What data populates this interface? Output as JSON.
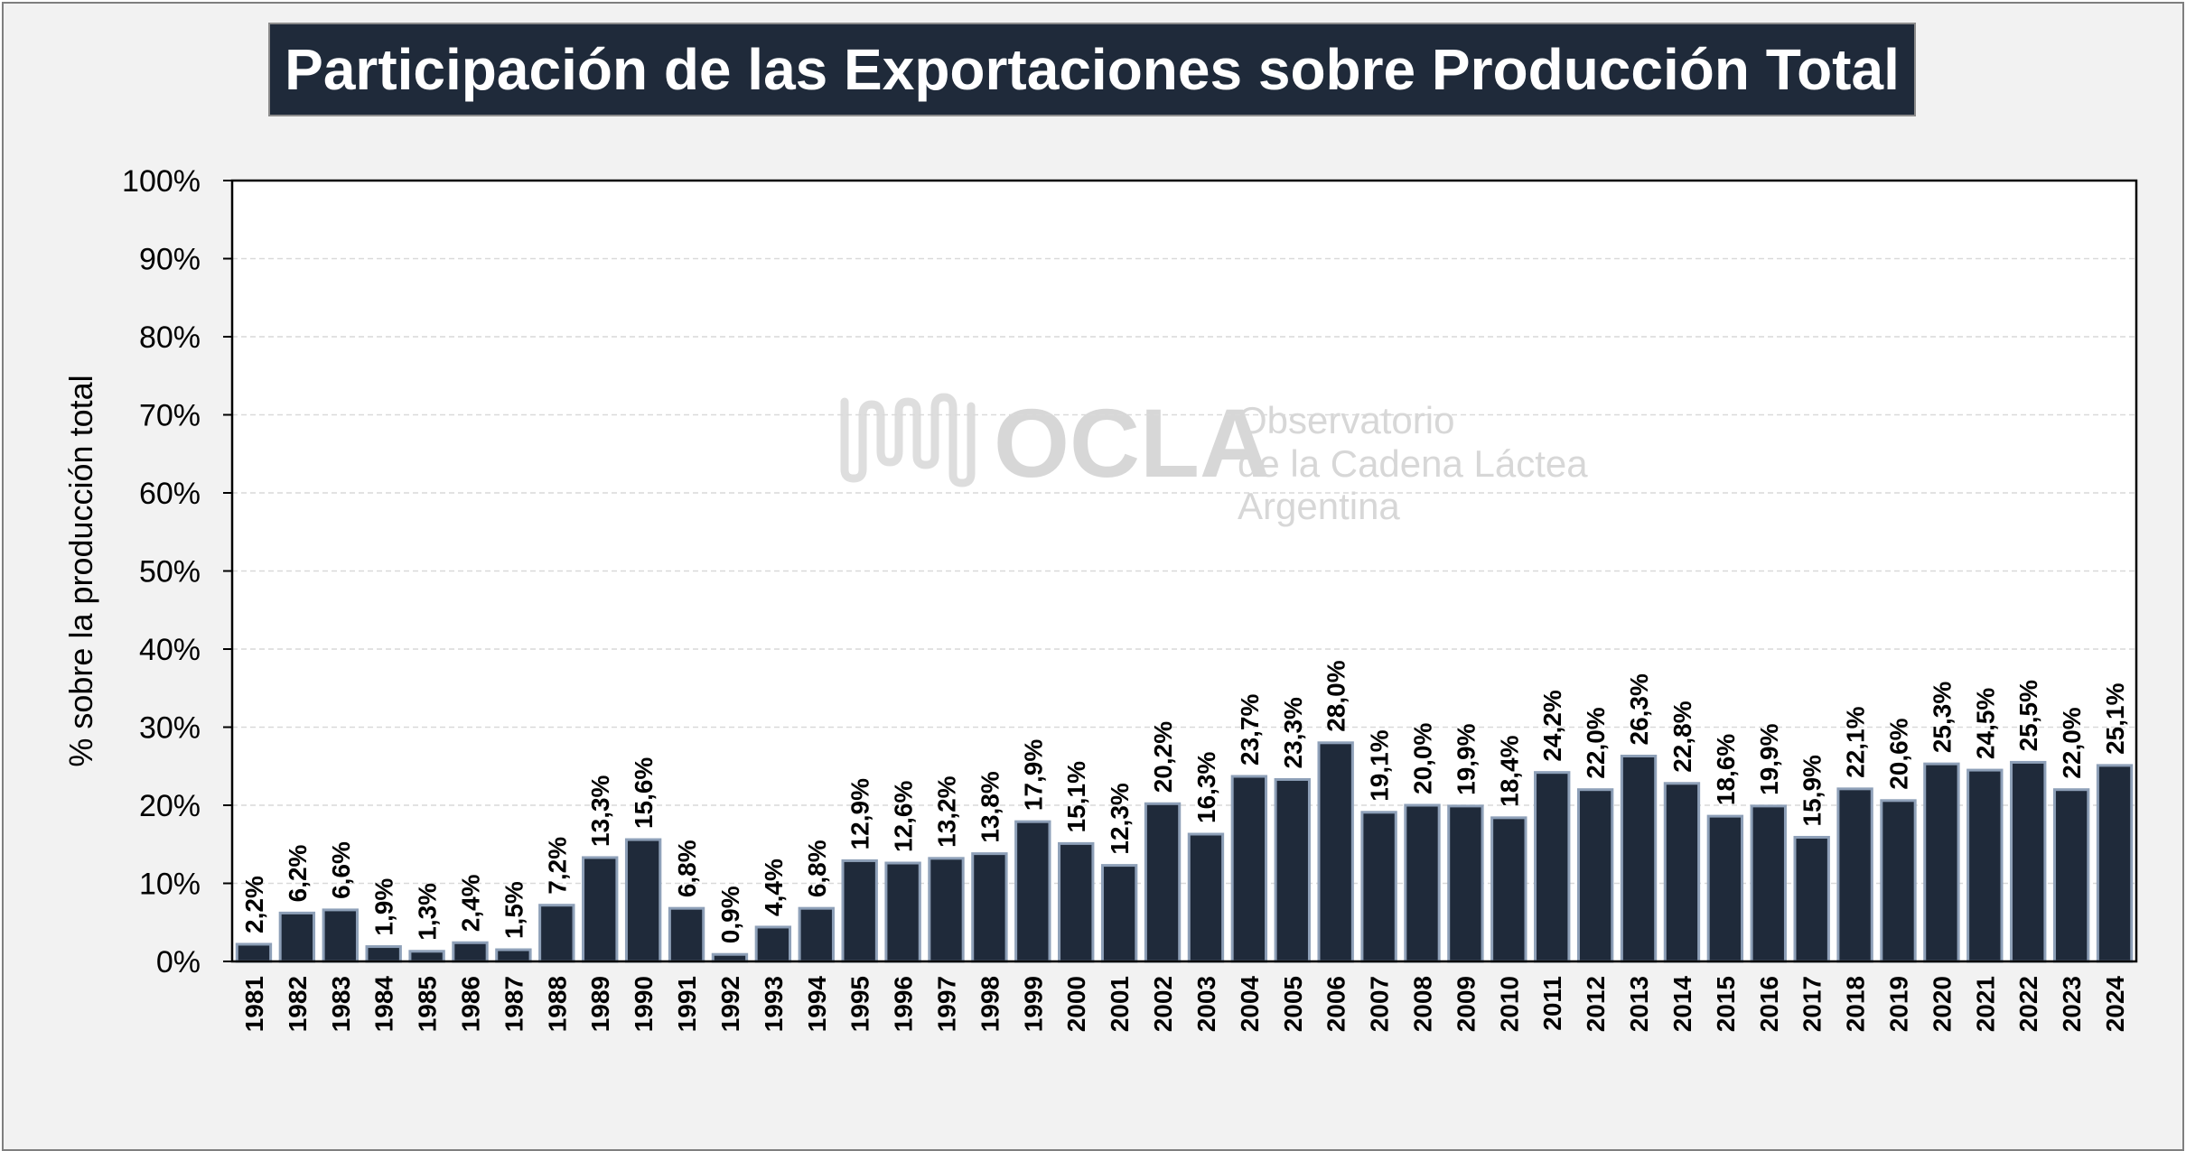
{
  "chart_data": {
    "type": "bar",
    "title": "Participación de las Exportaciones sobre Producción Total",
    "ylabel": "% sobre la producción total",
    "xlabel": "",
    "ylim": [
      0,
      100
    ],
    "yticks": [
      "0%",
      "10%",
      "20%",
      "30%",
      "40%",
      "50%",
      "60%",
      "70%",
      "80%",
      "90%",
      "100%"
    ],
    "grid": true,
    "categories": [
      "1981",
      "1982",
      "1983",
      "1984",
      "1985",
      "1986",
      "1987",
      "1988",
      "1989",
      "1990",
      "1991",
      "1992",
      "1993",
      "1994",
      "1995",
      "1996",
      "1997",
      "1998",
      "1999",
      "2000",
      "2001",
      "2002",
      "2003",
      "2004",
      "2005",
      "2006",
      "2007",
      "2008",
      "2009",
      "2010",
      "2011",
      "2012",
      "2013",
      "2014",
      "2015",
      "2016",
      "2017",
      "2018",
      "2019",
      "2020",
      "2021",
      "2022",
      "2023",
      "2024"
    ],
    "values": [
      2.2,
      6.2,
      6.6,
      1.9,
      1.3,
      2.4,
      1.5,
      7.2,
      13.3,
      15.6,
      6.8,
      0.9,
      4.4,
      6.8,
      12.9,
      12.6,
      13.2,
      13.8,
      17.9,
      15.1,
      12.3,
      20.2,
      16.3,
      23.7,
      23.3,
      28.0,
      19.1,
      20.0,
      19.9,
      18.4,
      24.2,
      22.0,
      26.3,
      22.8,
      18.6,
      19.9,
      15.9,
      22.1,
      20.6,
      25.3,
      24.5,
      25.5,
      22.0,
      25.1
    ],
    "data_labels": [
      "2,2%",
      "6,2%",
      "6,6%",
      "1,9%",
      "1,3%",
      "2,4%",
      "1,5%",
      "7,2%",
      "13,3%",
      "15,6%",
      "6,8%",
      "0,9%",
      "4,4%",
      "6,8%",
      "12,9%",
      "12,6%",
      "13,2%",
      "13,8%",
      "17,9%",
      "15,1%",
      "12,3%",
      "20,2%",
      "16,3%",
      "23,7%",
      "23,3%",
      "28,0%",
      "19,1%",
      "20,0%",
      "19,9%",
      "18,4%",
      "24,2%",
      "22,0%",
      "26,3%",
      "22,8%",
      "18,6%",
      "19,9%",
      "15,9%",
      "22,1%",
      "20,6%",
      "25,3%",
      "24,5%",
      "25,5%",
      "22,0%",
      "25,1%"
    ],
    "bar_color": "#1f2a3a",
    "bar_edge_color": "#8ea0b8"
  },
  "watermark": {
    "logo_text": "OCLA",
    "line1": "Observatorio",
    "line2": "de la Cadena Láctea",
    "line3": "Argentina"
  }
}
